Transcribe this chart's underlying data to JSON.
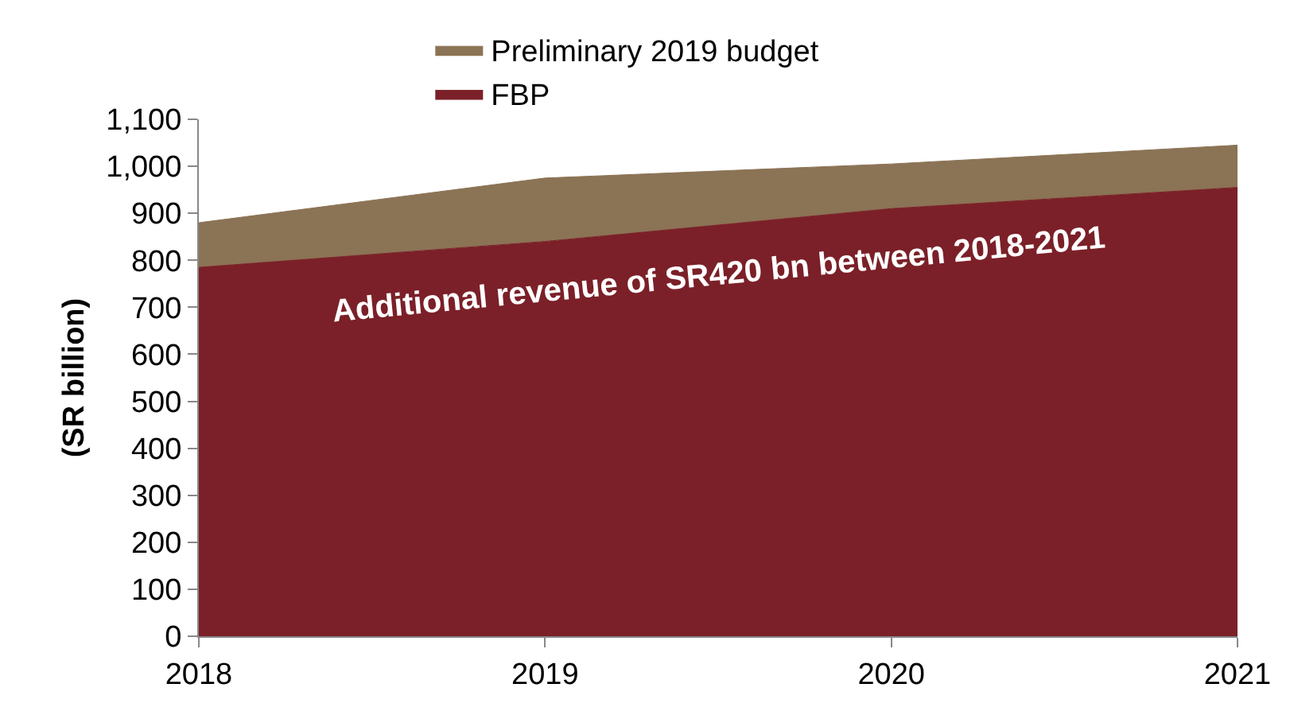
{
  "chart_data": {
    "type": "area",
    "stacked": true,
    "ylabel": "(SR billion)",
    "x": [
      2018,
      2019,
      2020,
      2021
    ],
    "series": [
      {
        "name": "FBP",
        "color": "#7b2028",
        "values": [
          785,
          840,
          910,
          955
        ]
      },
      {
        "name": "Preliminary 2019 budget",
        "color": "#8b7355",
        "values": [
          95,
          135,
          95,
          90
        ]
      }
    ],
    "xlim": [
      2018,
      2021
    ],
    "xticks": [
      2018,
      2019,
      2020,
      2021
    ],
    "ylim": [
      0,
      1100
    ],
    "yticks": [
      0,
      {
        "value": 100,
        "label": "100"
      },
      200,
      300,
      400,
      500,
      600,
      700,
      800,
      900,
      {
        "value": 1000,
        "label": "1,000"
      },
      {
        "value": 1100,
        "label": "1,100"
      }
    ],
    "legend": "top",
    "annotations": [
      "Additional revenue of SR420 bn between 2018-2021"
    ]
  }
}
